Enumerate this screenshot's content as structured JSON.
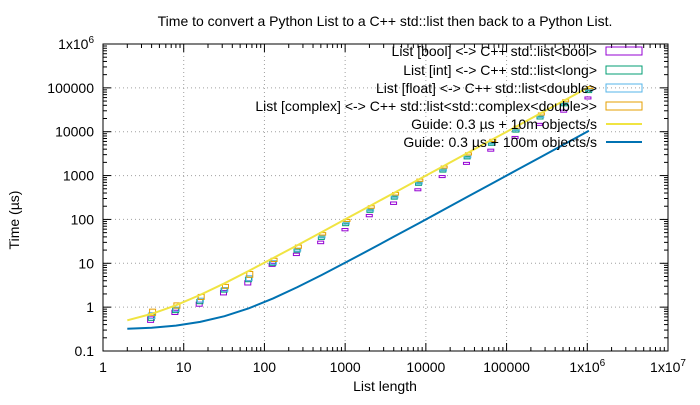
{
  "chart_data": {
    "type": "line",
    "title": "Time to convert a Python List to a C++ std::list then back to a Python List.",
    "xlabel": "List length",
    "ylabel": "Time (µs)",
    "xscale": "log",
    "yscale": "log",
    "xlim": [
      1,
      10000000
    ],
    "ylim": [
      0.1,
      1000000
    ],
    "grid": true,
    "legend_position": "top-right",
    "x_ticks": [
      {
        "value": 1,
        "label": "1"
      },
      {
        "value": 10,
        "label": "10"
      },
      {
        "value": 100,
        "label": "100"
      },
      {
        "value": 1000,
        "label": "1000"
      },
      {
        "value": 10000,
        "label": "10000"
      },
      {
        "value": 100000,
        "label": "100000"
      },
      {
        "value": 1000000,
        "label": "1x10^6"
      },
      {
        "value": 10000000,
        "label": "1x10^7"
      }
    ],
    "y_ticks": [
      {
        "value": 0.1,
        "label": "0.1"
      },
      {
        "value": 1,
        "label": "1"
      },
      {
        "value": 10,
        "label": "10"
      },
      {
        "value": 100,
        "label": "100"
      },
      {
        "value": 1000,
        "label": "1000"
      },
      {
        "value": 10000,
        "label": "10000"
      },
      {
        "value": 100000,
        "label": "100000"
      },
      {
        "value": 1000000,
        "label": "1x10^6"
      }
    ],
    "series": [
      {
        "name": "List [bool] <-> C++ std::list<bool>",
        "kind": "boxes",
        "color": "#9400d3",
        "x": [
          4,
          8,
          16,
          32,
          64,
          128,
          256,
          512,
          1024,
          2048,
          4096,
          8192,
          16384,
          32768,
          65536,
          131072,
          262144,
          524288,
          1048576
        ],
        "min": [
          0.45,
          0.68,
          1.05,
          1.9,
          3.2,
          8.5,
          15,
          28,
          55,
          115,
          220,
          450,
          900,
          1800,
          3600,
          7000,
          14000,
          28000,
          56000
        ],
        "max": [
          0.6,
          0.85,
          1.3,
          2.4,
          4.0,
          10,
          17,
          32,
          62,
          130,
          250,
          500,
          1000,
          2000,
          4000,
          7800,
          15500,
          31000,
          62000
        ]
      },
      {
        "name": "List [int] <-> C++ std::list<long>",
        "kind": "boxes",
        "color": "#009e73",
        "x": [
          4,
          8,
          16,
          32,
          64,
          128,
          256,
          512,
          1024,
          2048,
          4096,
          8192,
          16384,
          32768,
          65536,
          131072,
          262144,
          524288,
          1048576
        ],
        "min": [
          0.5,
          0.75,
          1.2,
          2.2,
          3.8,
          9,
          18,
          35,
          72,
          145,
          290,
          600,
          1200,
          2400,
          4900,
          9800,
          19500,
          39000,
          78000
        ],
        "max": [
          0.7,
          0.95,
          1.5,
          2.7,
          4.8,
          11,
          21,
          40,
          82,
          165,
          330,
          680,
          1350,
          2700,
          5500,
          11000,
          22000,
          44000,
          88000
        ]
      },
      {
        "name": "List [float] <-> C++ std::list<double>",
        "kind": "boxes",
        "color": "#56b4e9",
        "x": [
          4,
          8,
          16,
          32,
          64,
          128,
          256,
          512,
          1024,
          2048,
          4096,
          8192,
          16384,
          32768,
          65536,
          131072,
          262144,
          524288,
          1048576
        ],
        "min": [
          0.55,
          0.8,
          1.3,
          2.3,
          4.0,
          9.5,
          19,
          38,
          78,
          155,
          310,
          640,
          1280,
          2550,
          5200,
          10500,
          21000,
          42000,
          84000
        ],
        "max": [
          0.75,
          1.0,
          1.6,
          2.8,
          5.2,
          11.5,
          22,
          43,
          88,
          175,
          350,
          720,
          1450,
          2900,
          5900,
          11800,
          23500,
          47000,
          94000
        ]
      },
      {
        "name": "List [complex] <-> C++ std::list<std::complex<double>>",
        "kind": "boxes",
        "color": "#e69f00",
        "x": [
          4,
          8,
          16,
          32,
          64,
          128,
          256,
          512,
          1024,
          2048,
          4096,
          8192,
          16384,
          32768,
          65536,
          131072,
          262144,
          524288,
          1048576
        ],
        "min": [
          0.65,
          0.95,
          1.5,
          2.7,
          4.8,
          11,
          22,
          44,
          90,
          180,
          360,
          740,
          1480,
          2950,
          6000,
          12000,
          24000,
          48000,
          96000
        ],
        "max": [
          0.9,
          1.25,
          1.95,
          3.3,
          6.5,
          13,
          26,
          50,
          100,
          205,
          410,
          830,
          1650,
          3300,
          6700,
          13400,
          26800,
          53500,
          107000
        ]
      },
      {
        "name": "Guide: 0.3 µs + 10m objects/s",
        "kind": "line",
        "color": "#f0e442",
        "x": [
          2,
          4,
          8,
          16,
          32,
          64,
          128,
          256,
          512,
          1024,
          2048,
          4096,
          8192,
          16384,
          32768,
          65536,
          131072,
          262144,
          524288,
          1048576
        ],
        "y": [
          0.5,
          0.7,
          1.1,
          1.9,
          3.5,
          6.7,
          13.1,
          25.9,
          51.5,
          102.7,
          205.1,
          409.9,
          819.5,
          1638.7,
          3277.1,
          6553.9,
          13107.5,
          26214.7,
          52429.1,
          104857.9
        ]
      },
      {
        "name": "Guide: 0.3 µs + 100m objects/s",
        "kind": "line",
        "color": "#0072b2",
        "x": [
          2,
          4,
          8,
          16,
          32,
          64,
          128,
          256,
          512,
          1024,
          2048,
          4096,
          8192,
          16384,
          32768,
          65536,
          131072,
          262144,
          524288,
          1048576
        ],
        "y": [
          0.32,
          0.34,
          0.38,
          0.46,
          0.62,
          0.94,
          1.58,
          2.86,
          5.42,
          10.54,
          20.78,
          41.26,
          82.22,
          164.14,
          327.98,
          655.66,
          1311.02,
          2621.74,
          5243.18,
          10486.06
        ]
      }
    ]
  }
}
